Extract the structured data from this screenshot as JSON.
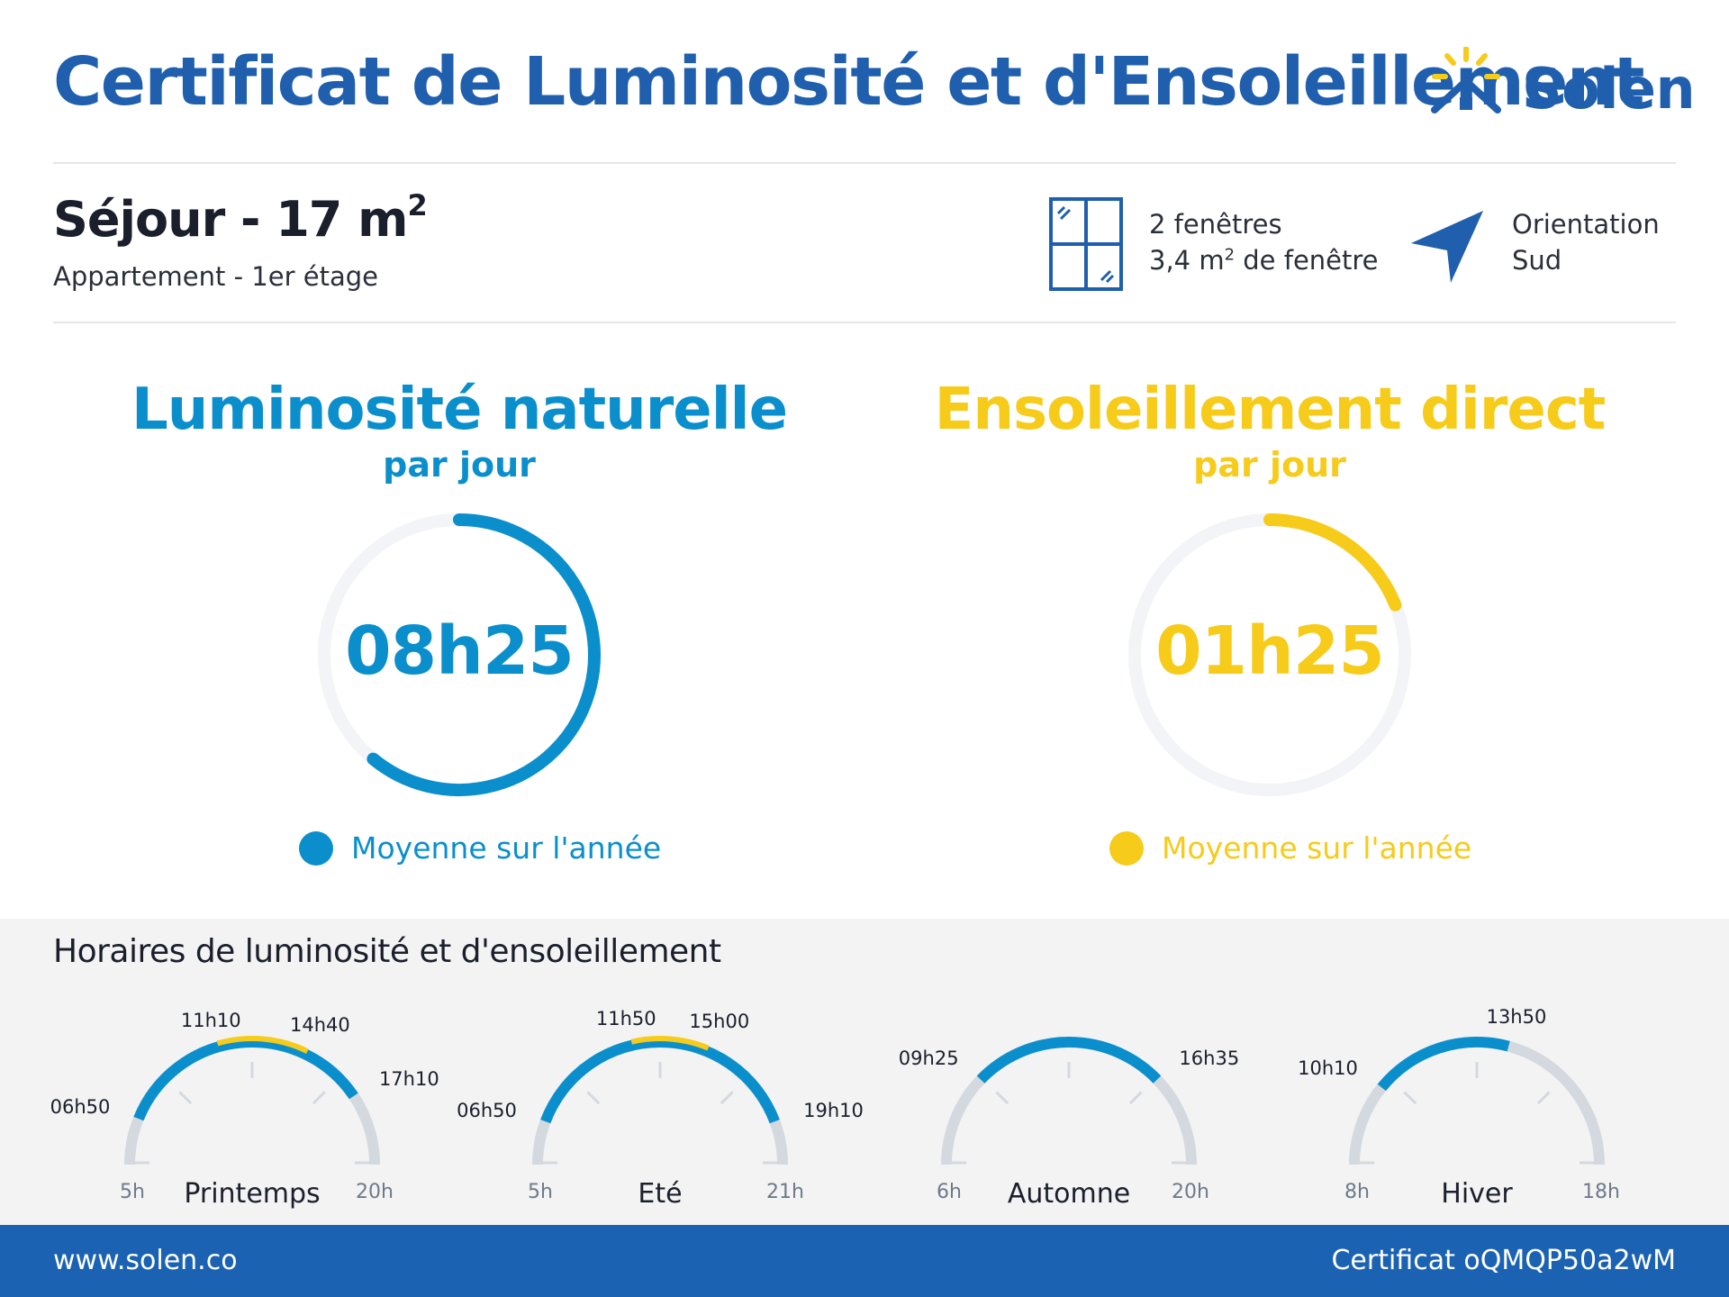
{
  "header": {
    "title": "Certificat de Luminosité et d'Ensoleillement",
    "brand": "Solen",
    "logo_icon": "sun-house-icon"
  },
  "room": {
    "name": "Séjour - 17 m",
    "area_exponent": "2",
    "subtitle": "Appartement - 1er étage"
  },
  "windows": {
    "icon": "window-icon",
    "count_text": "2 fenêtres",
    "area_text": "3,4 m",
    "area_exponent": "2",
    "area_suffix": " de fenêtre"
  },
  "orientation": {
    "icon": "navigation-arrow-icon",
    "label": "Orientation",
    "value": "Sud"
  },
  "luminosity": {
    "title": "Luminosité naturelle",
    "subtitle": "par jour",
    "value": "08h25",
    "fraction": 0.61,
    "legend": "Moyenne sur l'année",
    "color": "#0b8fcc"
  },
  "sunshine": {
    "title": "Ensoleillement direct",
    "subtitle": "par jour",
    "value": "01h25",
    "fraction": 0.19,
    "legend": "Moyenne sur l'année",
    "color": "#f6cb1a"
  },
  "schedule": {
    "title": "Horaires de luminosité et d'ensoleillement",
    "seasons": [
      {
        "name": "Printemps",
        "axis_start": "5h",
        "axis_end": "20h",
        "start_hour": 5,
        "end_hour": 20,
        "light_start": "06h50",
        "light_end": "17h10",
        "light_start_val": 6.833,
        "light_end_val": 17.167,
        "sun_start": "11h10",
        "sun_end": "14h40",
        "sun_start_val": 11.167,
        "sun_end_val": 14.667
      },
      {
        "name": "Eté",
        "axis_start": "5h",
        "axis_end": "21h",
        "start_hour": 5,
        "end_hour": 21,
        "light_start": "06h50",
        "light_end": "19h10",
        "light_start_val": 6.833,
        "light_end_val": 19.167,
        "sun_start": "11h50",
        "sun_end": "15h00",
        "sun_start_val": 11.833,
        "sun_end_val": 15.0
      },
      {
        "name": "Automne",
        "axis_start": "6h",
        "axis_end": "20h",
        "start_hour": 6,
        "end_hour": 20,
        "light_start": "09h25",
        "light_end": "16h35",
        "light_start_val": 9.417,
        "light_end_val": 16.583,
        "sun_start": "",
        "sun_end": "",
        "sun_start_val": null,
        "sun_end_val": null
      },
      {
        "name": "Hiver",
        "axis_start": "8h",
        "axis_end": "18h",
        "start_hour": 8,
        "end_hour": 18,
        "light_start": "10h10",
        "light_end": "13h50",
        "light_start_val": 10.167,
        "light_end_val": 13.833,
        "sun_start": "",
        "sun_end": "",
        "sun_start_val": null,
        "sun_end_val": null
      }
    ]
  },
  "footer": {
    "website": "www.solen.co",
    "certificate": "Certificat oQMQP50a2wM"
  }
}
